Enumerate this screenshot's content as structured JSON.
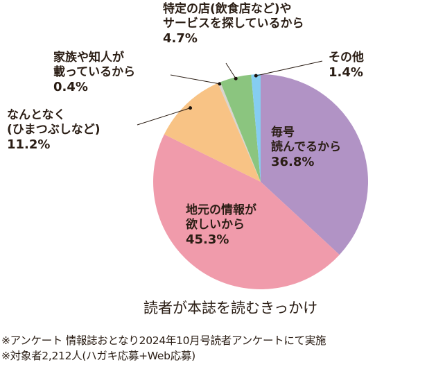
{
  "chart_data": {
    "type": "pie",
    "title": "読者が本誌を読むきっかけ",
    "start": "top",
    "direction": "clockwise",
    "slices": [
      {
        "label_lines": [
          "毎号",
          "読んでるから"
        ],
        "value": 36.8,
        "pct_text": "36.8%",
        "color": "#b193c5"
      },
      {
        "label_lines": [
          "地元の情報が",
          "欲しいから"
        ],
        "value": 45.3,
        "pct_text": "45.3%",
        "color": "#f09bab"
      },
      {
        "label_lines": [
          "なんとなく",
          "(ひまつぶしなど)"
        ],
        "value": 11.2,
        "pct_text": "11.2%",
        "color": "#f8c385"
      },
      {
        "label_lines": [
          "家族や知人が",
          "載っているから"
        ],
        "value": 0.4,
        "pct_text": "0.4%",
        "color": "#d9d4cf"
      },
      {
        "label_lines": [
          "特定の店(飲食店など)や",
          "サービスを探しているから"
        ],
        "value": 4.7,
        "pct_text": "4.7%",
        "color": "#8bc57f"
      },
      {
        "label_lines": [
          "その他"
        ],
        "value": 1.4,
        "pct_text": "1.4%",
        "color": "#85cdf1"
      }
    ]
  },
  "notes": [
    "※アンケート 情報誌おとなり2024年10月号読者アンケートにて実施",
    "※対象者2,212人(ハガキ応募+Web応募)"
  ]
}
